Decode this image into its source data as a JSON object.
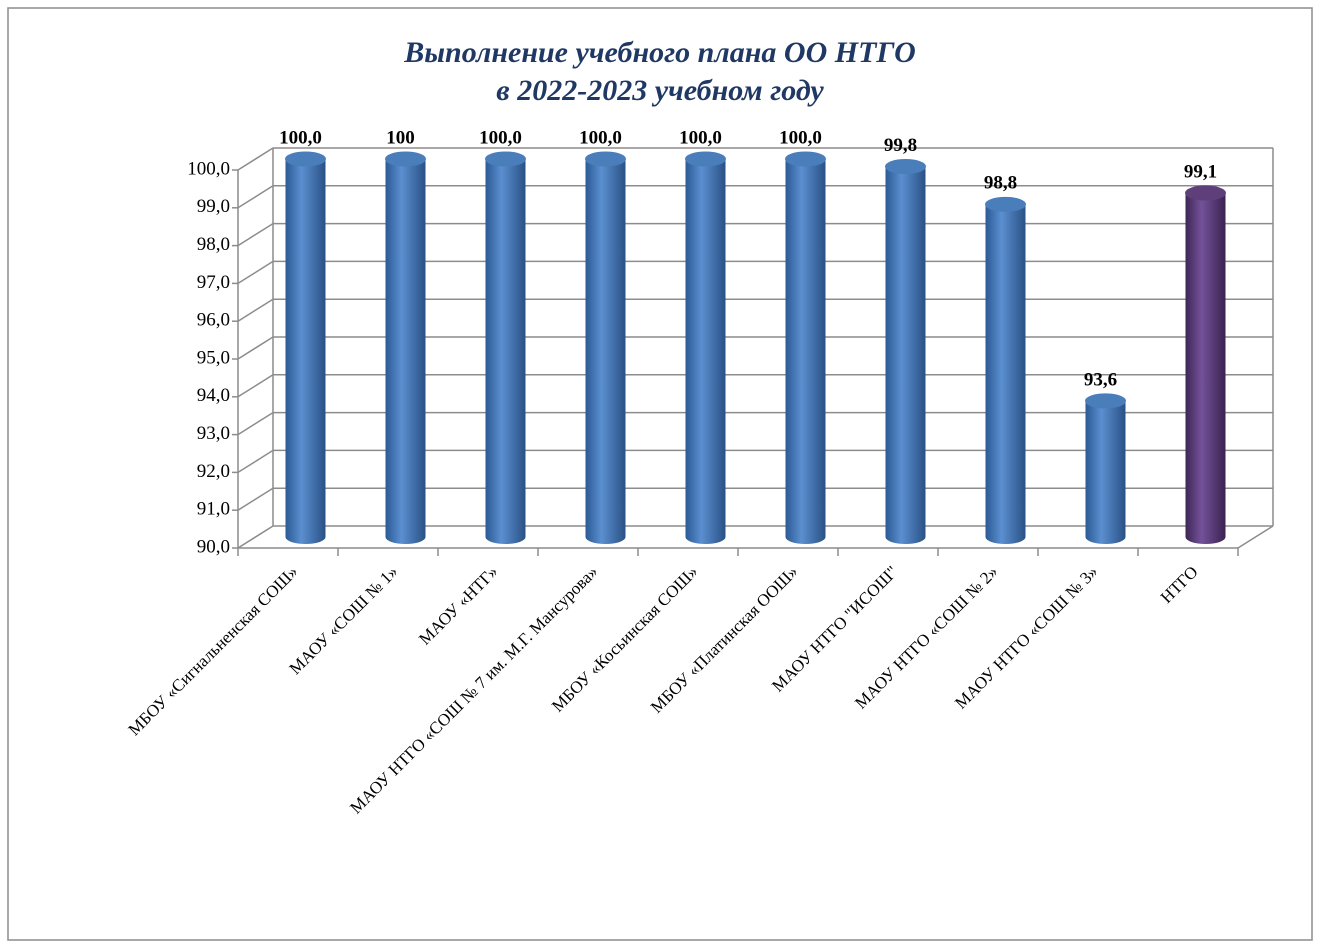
{
  "chart_data": {
    "type": "bar3d",
    "title": [
      "Выполнение учебного плана ОО НТГО",
      "в 2022-2023  учебном году"
    ],
    "categories": [
      "МБОУ «Сигнальненская СОШ»",
      "МАОУ «СОШ № 1»",
      "МАОУ «НТГ»",
      "МАОУ НТГО «СОШ № 7 им. М.Г. Мансурова»",
      "МБОУ «Косьинская СОШ»",
      "МБОУ «Платинская ООШ»",
      "МАОУ НТГО \"ИСОШ\"",
      "МАОУ НТГО «СОШ № 2»",
      "МАОУ НТГО «СОШ № 3»",
      "НТГО"
    ],
    "values": [
      100,
      100,
      100,
      100,
      100,
      100,
      99.8,
      98.8,
      93.6,
      99.1
    ],
    "value_labels": [
      "100,0",
      "100",
      "100,0",
      "100,0",
      "100,0",
      "100,0",
      "99,8",
      "98,8",
      "93,6",
      "99,1"
    ],
    "colors": [
      "#4a7ebb",
      "#4a7ebb",
      "#4a7ebb",
      "#4a7ebb",
      "#4a7ebb",
      "#4a7ebb",
      "#4a7ebb",
      "#4a7ebb",
      "#4a7ebb",
      "#5f3f7a"
    ],
    "ylim": [
      90,
      100
    ],
    "yticks": [
      {
        "value": 90,
        "label": "90,0"
      },
      {
        "value": 91,
        "label": "91,0"
      },
      {
        "value": 92,
        "label": "92,0"
      },
      {
        "value": 93,
        "label": "93,0"
      },
      {
        "value": 94,
        "label": "94,0"
      },
      {
        "value": 95,
        "label": "95,0"
      },
      {
        "value": 96,
        "label": "96,0"
      },
      {
        "value": 97,
        "label": "97,0"
      },
      {
        "value": 98,
        "label": "98,0"
      },
      {
        "value": 99,
        "label": "99,0"
      },
      {
        "value": 100,
        "label": "100,0"
      }
    ],
    "grid": true
  }
}
